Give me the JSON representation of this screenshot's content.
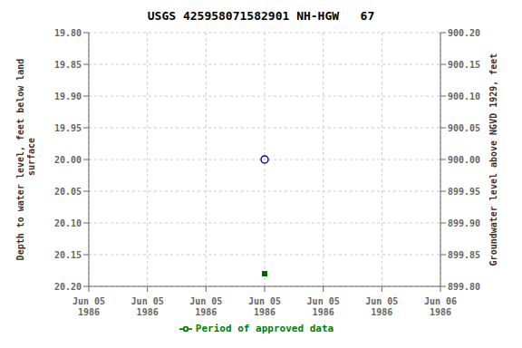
{
  "chart_data": {
    "type": "scatter",
    "title": "USGS 425958071582901 NH-HGW   67",
    "categories": [
      "Jun 05\n1986",
      "Jun 05\n1986",
      "Jun 05\n1986",
      "Jun 05\n1986",
      "Jun 05\n1986",
      "Jun 05\n1986",
      "Jun 06\n1986"
    ],
    "series": [
      {
        "color": "#0000cc",
        "marker": "circle",
        "values": [
          null,
          null,
          null,
          20.0,
          null,
          null,
          null
        ]
      },
      {
        "color": "#006600",
        "marker": "square",
        "values": [
          null,
          null,
          null,
          20.18,
          null,
          null,
          null
        ]
      },
      {
        "name": "Period of approved data",
        "type": "line",
        "color": "#008000",
        "values": [
          null,
          null,
          null,
          null,
          null,
          null,
          null
        ]
      }
    ],
    "y_label": "Depth to water level, feet below land\n surface",
    "y2_label": "Groundwater level above NGVD 1929, feet",
    "ylim": [
      20.2,
      19.8
    ],
    "yticks": [
      {
        "value": 19.8,
        "label": "19.80"
      },
      {
        "value": 19.85,
        "label": "19.85"
      },
      {
        "value": 19.9,
        "label": "19.90"
      },
      {
        "value": 19.95,
        "label": "19.95"
      },
      {
        "value": 20.0,
        "label": "20.00"
      },
      {
        "value": 20.05,
        "label": "20.05"
      },
      {
        "value": 20.1,
        "label": "20.10"
      },
      {
        "value": 20.15,
        "label": "20.15"
      },
      {
        "value": 20.2,
        "label": "20.20"
      }
    ],
    "y2lim": [
      899.8,
      900.2
    ],
    "y2ticks": [
      {
        "value": 900.2,
        "label": "900.20"
      },
      {
        "value": 900.15,
        "label": "900.15"
      },
      {
        "value": 900.1,
        "label": "900.10"
      },
      {
        "value": 900.05,
        "label": "900.05"
      },
      {
        "value": 900.0,
        "label": "900.00"
      },
      {
        "value": 899.95,
        "label": "899.95"
      },
      {
        "value": 899.9,
        "label": "899.90"
      },
      {
        "value": 899.85,
        "label": "899.85"
      },
      {
        "value": 899.8,
        "label": "899.80"
      }
    ],
    "grid": true,
    "legend": "bottom"
  }
}
